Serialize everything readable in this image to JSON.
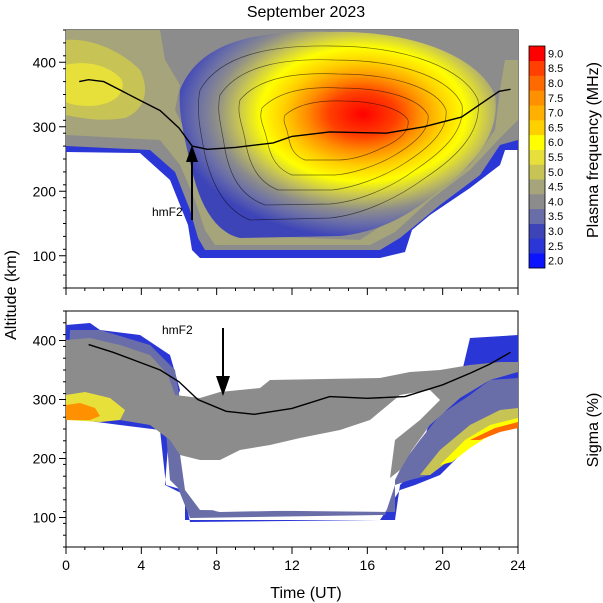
{
  "chart_data": {
    "type": "heatmap",
    "title": "September 2023",
    "xlabel": "Time (UT)",
    "ylabel": "Altitude (km)",
    "xlim": [
      0,
      24
    ],
    "x_ticks": [
      0,
      4,
      8,
      12,
      16,
      20,
      24
    ],
    "panels": [
      {
        "name": "Plasma frequency",
        "colorbar_label": "Plasma frequency (MHz)",
        "colorbar_levels": [
          2.0,
          2.5,
          3.0,
          3.5,
          4.0,
          4.5,
          5.0,
          5.5,
          6.0,
          6.5,
          7.0,
          7.5,
          8.0,
          8.5,
          9.0
        ],
        "colorbar_colors": [
          "#0a14ff",
          "#2b36d6",
          "#3d44b8",
          "#6a6ea8",
          "#8c8c8c",
          "#a6a47a",
          "#c7c455",
          "#e8e03a",
          "#ffff00",
          "#ffd000",
          "#ffb000",
          "#ff9000",
          "#ff6a00",
          "#ff4000",
          "#ff0000"
        ],
        "ylim": [
          50,
          450
        ],
        "y_ticks": [
          100,
          200,
          300,
          400
        ],
        "annotation": "hmF2",
        "annotation_arrow_time": 6.6,
        "hmF2_curve": [
          [
            0.7,
            370
          ],
          [
            1.2,
            373
          ],
          [
            2.0,
            370
          ],
          [
            3.0,
            355
          ],
          [
            4.0,
            340
          ],
          [
            5.0,
            325
          ],
          [
            6.0,
            298
          ],
          [
            6.7,
            270
          ],
          [
            7.5,
            265
          ],
          [
            9.0,
            268
          ],
          [
            11.0,
            275
          ],
          [
            12.0,
            285
          ],
          [
            14.0,
            292
          ],
          [
            17.0,
            290
          ],
          [
            19.0,
            300
          ],
          [
            21.0,
            315
          ],
          [
            22.0,
            335
          ],
          [
            23.0,
            355
          ],
          [
            23.6,
            358
          ]
        ]
      },
      {
        "name": "Sigma",
        "colorbar_label": "Sigma (%)",
        "ylim": [
          50,
          450
        ],
        "y_ticks": [
          100,
          200,
          300,
          400
        ],
        "annotation": "hmF2",
        "annotation_arrow_time": 8.2,
        "hmF2_curve": [
          [
            1.2,
            393
          ],
          [
            2.5,
            380
          ],
          [
            4.0,
            362
          ],
          [
            5.0,
            350
          ],
          [
            6.0,
            330
          ],
          [
            7.0,
            300
          ],
          [
            8.5,
            280
          ],
          [
            10.0,
            275
          ],
          [
            12.0,
            285
          ],
          [
            14.0,
            305
          ],
          [
            16.0,
            302
          ],
          [
            18.0,
            305
          ],
          [
            20.0,
            325
          ],
          [
            21.5,
            345
          ],
          [
            22.5,
            360
          ],
          [
            23.6,
            380
          ]
        ]
      }
    ]
  }
}
